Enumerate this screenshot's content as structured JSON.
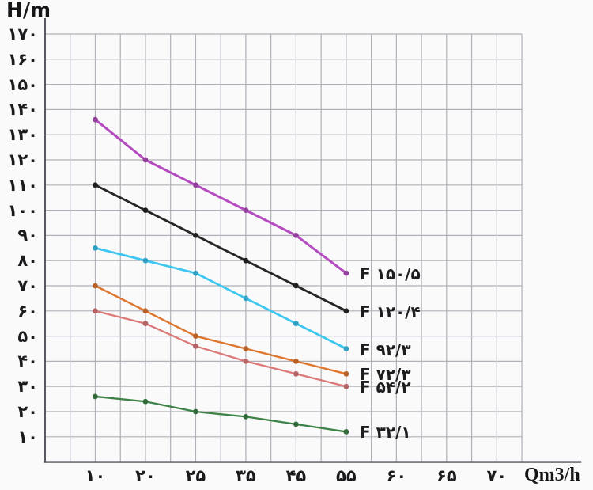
{
  "page": {
    "background": "#fbfafa",
    "text_color": "#1b1b1e"
  },
  "axes": {
    "y_title": "H/m",
    "x_title": "Qm3/h",
    "y_ticks": [
      {
        "value": 170,
        "label": "۱۷۰"
      },
      {
        "value": 160,
        "label": "۱۶۰"
      },
      {
        "value": 150,
        "label": "۱۵۰"
      },
      {
        "value": 140,
        "label": "۱۴۰"
      },
      {
        "value": 130,
        "label": "۱۳۰"
      },
      {
        "value": 120,
        "label": "۱۲۰"
      },
      {
        "value": 110,
        "label": "۱۱۰"
      },
      {
        "value": 100,
        "label": "۱۰۰"
      },
      {
        "value": 90,
        "label": "۹۰"
      },
      {
        "value": 80,
        "label": "۸۰"
      },
      {
        "value": 70,
        "label": "۷۰"
      },
      {
        "value": 60,
        "label": "۶۰"
      },
      {
        "value": 50,
        "label": "۵۰"
      },
      {
        "value": 40,
        "label": "۴۰"
      },
      {
        "value": 30,
        "label": "۳۰"
      },
      {
        "value": 20,
        "label": "۲۰"
      },
      {
        "value": 10,
        "label": "۱۰"
      }
    ],
    "x_ticks": [
      {
        "value": 10,
        "label": "۱۰"
      },
      {
        "value": 20,
        "label": "۲۰"
      },
      {
        "value": 25,
        "label": "۲۵"
      },
      {
        "value": 35,
        "label": "۳۵"
      },
      {
        "value": 45,
        "label": "۴۵"
      },
      {
        "value": 55,
        "label": "۵۵"
      },
      {
        "value": 60,
        "label": "۶۰"
      },
      {
        "value": 65,
        "label": "۶۵"
      },
      {
        "value": 70,
        "label": "۷۰"
      }
    ]
  },
  "chart_data": {
    "type": "line",
    "title": "",
    "xlabel": "Qm3/h",
    "ylabel": "H/m",
    "x": [
      10,
      20,
      25,
      35,
      45,
      55
    ],
    "x_axis_tick_values": [
      10,
      20,
      25,
      35,
      45,
      55,
      60,
      65,
      70
    ],
    "x_axis_layout_note": "ticks are evenly spaced on the grid even though the values are non-linear",
    "ylim": [
      0,
      170
    ],
    "y_tick_step": 10,
    "grid": true,
    "legend_position": "labels at right end of each line",
    "grid_color": "#b1afb7",
    "axis_color": "#59565f",
    "series": [
      {
        "name": "F ۱۵۰/۵",
        "name_en": "F 150/5",
        "color": "#b44cc0",
        "values": [
          136,
          120,
          110,
          100,
          90,
          75
        ]
      },
      {
        "name": "F ۱۲۰/۴",
        "name_en": "F 120/4",
        "color": "#262626",
        "values": [
          110,
          100,
          90,
          80,
          70,
          60
        ]
      },
      {
        "name": "F ۹۲/۳",
        "name_en": "F 92/3",
        "color": "#3cc6f0",
        "values": [
          85,
          80,
          75,
          65,
          55,
          45
        ]
      },
      {
        "name": "F ۷۲/۳",
        "name_en": "F 72/3",
        "color": "#df762e",
        "values": [
          70,
          60,
          50,
          45,
          40,
          35
        ]
      },
      {
        "name": "F ۵۴/۲",
        "name_en": "F 54/2",
        "color": "#dc7a7a",
        "values": [
          60,
          55,
          46,
          40,
          35,
          30
        ]
      },
      {
        "name": "F ۳۲/۱",
        "name_en": "F 32/1",
        "color": "#3d8347",
        "values": [
          26,
          24,
          20,
          18,
          15,
          12
        ]
      }
    ]
  }
}
